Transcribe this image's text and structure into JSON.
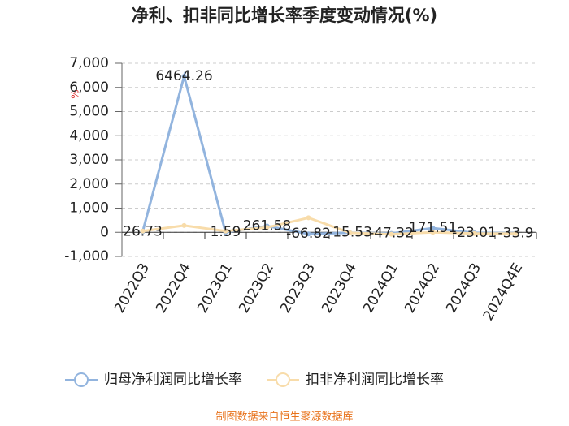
{
  "chart_data": {
    "type": "line",
    "title": "净利、扣非同比增长率季度变动情况(%)",
    "ylabel": "%",
    "source": "制图数据来自恒生聚源数据库",
    "categories": [
      "2022Q3",
      "2022Q4",
      "2023Q1",
      "2023Q2",
      "2023Q3",
      "2023Q4",
      "2024Q1",
      "2024Q2",
      "2024Q3",
      "2024Q4E"
    ],
    "series": [
      {
        "name": "归母净利润同比增长率",
        "color": "#92b4de",
        "values": [
          26.73,
          6464.26,
          1.59,
          261.58,
          -66.82,
          -15.53,
          -47.32,
          171.51,
          -23.01,
          -33.9
        ],
        "labels": true
      },
      {
        "name": "扣非净利润同比增长率",
        "color": "#f8dcaa",
        "values": [
          50,
          280,
          50,
          200,
          600,
          -20,
          -80,
          0,
          -50,
          -50
        ],
        "labels": false
      }
    ],
    "ylim": [
      -1000,
      7000
    ],
    "yticks": [
      {
        "value": -1000,
        "label": "-1,000"
      },
      0,
      {
        "value": 1000,
        "label": "1,000"
      },
      {
        "value": 2000,
        "label": "2,000"
      },
      {
        "value": 3000,
        "label": "3,000"
      },
      {
        "value": 4000,
        "label": "4,000"
      },
      {
        "value": 5000,
        "label": "5,000"
      },
      {
        "value": 6000,
        "label": "6,000"
      },
      {
        "value": 7000,
        "label": "7,000"
      }
    ],
    "grid": true
  }
}
